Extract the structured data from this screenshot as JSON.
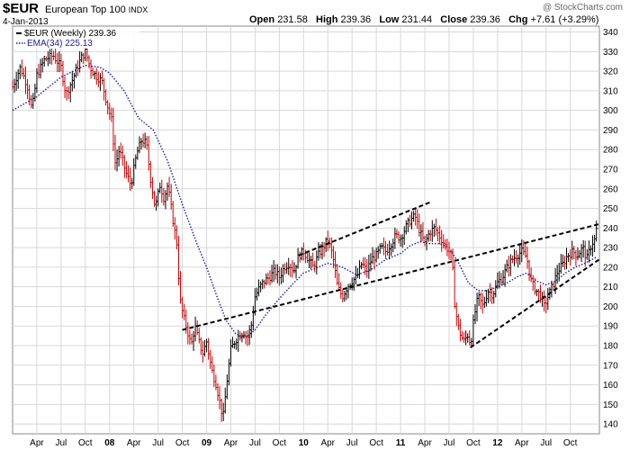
{
  "header": {
    "symbol": "$EUR",
    "name": "European Top 100",
    "exchange": "INDX",
    "date": "4-Jan-2013",
    "open_label": "Open",
    "open": "231.58",
    "high_label": "High",
    "high": "239.36",
    "low_label": "Low",
    "low": "231.44",
    "close_label": "Close",
    "close": "239.36",
    "chg_label": "Chg",
    "chg": "+7.61 (+3.29%)",
    "credit": "@ StockCharts.com"
  },
  "legend": {
    "price": "$EUR (Weekly) 239.36",
    "ema": "EMA(34) 225.13"
  },
  "colors": {
    "up": "#000000",
    "down": "#cc0000",
    "ema": "#1a1aa8",
    "grid": "#d8d8d8",
    "trend": "#000000"
  },
  "chart_data": {
    "type": "line",
    "ylim": [
      135,
      343
    ],
    "xlim": [
      2007.0,
      2013.05
    ],
    "y_ticks": [
      140,
      150,
      160,
      170,
      180,
      190,
      200,
      210,
      220,
      230,
      240,
      250,
      260,
      270,
      280,
      290,
      300,
      310,
      320,
      330,
      340
    ],
    "x_ticks": [
      {
        "label": "Apr",
        "x": 2007.25
      },
      {
        "label": "Jul",
        "x": 2007.5
      },
      {
        "label": "Oct",
        "x": 2007.75
      },
      {
        "label": "08",
        "x": 2008.0
      },
      {
        "label": "Apr",
        "x": 2008.25
      },
      {
        "label": "Jul",
        "x": 2008.5
      },
      {
        "label": "Oct",
        "x": 2008.75
      },
      {
        "label": "09",
        "x": 2009.0
      },
      {
        "label": "Apr",
        "x": 2009.25
      },
      {
        "label": "Jul",
        "x": 2009.5
      },
      {
        "label": "Oct",
        "x": 2009.75
      },
      {
        "label": "10",
        "x": 2010.0
      },
      {
        "label": "Apr",
        "x": 2010.25
      },
      {
        "label": "Jul",
        "x": 2010.5
      },
      {
        "label": "Oct",
        "x": 2010.75
      },
      {
        "label": "11",
        "x": 2011.0
      },
      {
        "label": "Apr",
        "x": 2011.25
      },
      {
        "label": "Jul",
        "x": 2011.5
      },
      {
        "label": "Oct",
        "x": 2011.75
      },
      {
        "label": "12",
        "x": 2012.0
      },
      {
        "label": "Apr",
        "x": 2012.25
      },
      {
        "label": "Jul",
        "x": 2012.5
      },
      {
        "label": "Oct",
        "x": 2012.75
      }
    ],
    "price_path": [
      [
        2007.0,
        312
      ],
      [
        2007.08,
        322
      ],
      [
        2007.15,
        313
      ],
      [
        2007.2,
        300
      ],
      [
        2007.25,
        318
      ],
      [
        2007.33,
        326
      ],
      [
        2007.42,
        328
      ],
      [
        2007.5,
        322
      ],
      [
        2007.55,
        308
      ],
      [
        2007.62,
        316
      ],
      [
        2007.7,
        326
      ],
      [
        2007.75,
        330
      ],
      [
        2007.8,
        322
      ],
      [
        2007.85,
        318
      ],
      [
        2007.92,
        315
      ],
      [
        2007.97,
        304
      ],
      [
        2008.02,
        295
      ],
      [
        2008.06,
        272
      ],
      [
        2008.1,
        280
      ],
      [
        2008.17,
        268
      ],
      [
        2008.22,
        262
      ],
      [
        2008.28,
        278
      ],
      [
        2008.33,
        285
      ],
      [
        2008.38,
        283
      ],
      [
        2008.42,
        266
      ],
      [
        2008.47,
        250
      ],
      [
        2008.52,
        262
      ],
      [
        2008.56,
        255
      ],
      [
        2008.6,
        262
      ],
      [
        2008.65,
        245
      ],
      [
        2008.7,
        230
      ],
      [
        2008.72,
        205
      ],
      [
        2008.76,
        195
      ],
      [
        2008.8,
        188
      ],
      [
        2008.84,
        180
      ],
      [
        2008.88,
        190
      ],
      [
        2008.92,
        182
      ],
      [
        2008.96,
        176
      ],
      [
        2009.0,
        182
      ],
      [
        2009.05,
        168
      ],
      [
        2009.1,
        160
      ],
      [
        2009.14,
        150
      ],
      [
        2009.17,
        143
      ],
      [
        2009.21,
        162
      ],
      [
        2009.25,
        178
      ],
      [
        2009.29,
        182
      ],
      [
        2009.33,
        185
      ],
      [
        2009.38,
        187
      ],
      [
        2009.42,
        184
      ],
      [
        2009.46,
        190
      ],
      [
        2009.5,
        205
      ],
      [
        2009.55,
        210
      ],
      [
        2009.6,
        213
      ],
      [
        2009.65,
        215
      ],
      [
        2009.7,
        218
      ],
      [
        2009.75,
        215
      ],
      [
        2009.8,
        220
      ],
      [
        2009.85,
        222
      ],
      [
        2009.9,
        218
      ],
      [
        2009.95,
        226
      ],
      [
        2010.0,
        228
      ],
      [
        2010.05,
        224
      ],
      [
        2010.1,
        220
      ],
      [
        2010.15,
        226
      ],
      [
        2010.2,
        230
      ],
      [
        2010.25,
        234
      ],
      [
        2010.3,
        226
      ],
      [
        2010.35,
        210
      ],
      [
        2010.4,
        205
      ],
      [
        2010.45,
        210
      ],
      [
        2010.5,
        213
      ],
      [
        2010.55,
        215
      ],
      [
        2010.6,
        222
      ],
      [
        2010.65,
        218
      ],
      [
        2010.7,
        224
      ],
      [
        2010.75,
        226
      ],
      [
        2010.8,
        230
      ],
      [
        2010.85,
        228
      ],
      [
        2010.9,
        232
      ],
      [
        2010.95,
        236
      ],
      [
        2011.0,
        235
      ],
      [
        2011.05,
        240
      ],
      [
        2011.1,
        244
      ],
      [
        2011.15,
        246
      ],
      [
        2011.2,
        238
      ],
      [
        2011.25,
        232
      ],
      [
        2011.3,
        238
      ],
      [
        2011.35,
        240
      ],
      [
        2011.4,
        236
      ],
      [
        2011.45,
        232
      ],
      [
        2011.5,
        228
      ],
      [
        2011.53,
        225
      ],
      [
        2011.56,
        200
      ],
      [
        2011.6,
        188
      ],
      [
        2011.65,
        182
      ],
      [
        2011.7,
        186
      ],
      [
        2011.72,
        180
      ],
      [
        2011.76,
        195
      ],
      [
        2011.8,
        205
      ],
      [
        2011.85,
        200
      ],
      [
        2011.9,
        208
      ],
      [
        2011.95,
        206
      ],
      [
        2012.0,
        212
      ],
      [
        2012.05,
        215
      ],
      [
        2012.1,
        220
      ],
      [
        2012.15,
        224
      ],
      [
        2012.2,
        226
      ],
      [
        2012.25,
        228
      ],
      [
        2012.3,
        225
      ],
      [
        2012.35,
        212
      ],
      [
        2012.4,
        208
      ],
      [
        2012.45,
        205
      ],
      [
        2012.48,
        200
      ],
      [
        2012.52,
        205
      ],
      [
        2012.58,
        212
      ],
      [
        2012.62,
        218
      ],
      [
        2012.68,
        222
      ],
      [
        2012.72,
        226
      ],
      [
        2012.78,
        228
      ],
      [
        2012.82,
        226
      ],
      [
        2012.88,
        230
      ],
      [
        2012.92,
        224
      ],
      [
        2012.97,
        232
      ],
      [
        2013.0,
        234
      ],
      [
        2013.02,
        239.36
      ]
    ],
    "ema": [
      [
        2007.0,
        300
      ],
      [
        2007.25,
        307
      ],
      [
        2007.5,
        317
      ],
      [
        2007.75,
        323
      ],
      [
        2007.9,
        322
      ],
      [
        2008.0,
        319
      ],
      [
        2008.15,
        310
      ],
      [
        2008.3,
        296
      ],
      [
        2008.45,
        290
      ],
      [
        2008.6,
        274
      ],
      [
        2008.75,
        252
      ],
      [
        2008.9,
        232
      ],
      [
        2009.0,
        220
      ],
      [
        2009.1,
        206
      ],
      [
        2009.2,
        193
      ],
      [
        2009.3,
        186
      ],
      [
        2009.4,
        184
      ],
      [
        2009.5,
        188
      ],
      [
        2009.6,
        195
      ],
      [
        2009.75,
        204
      ],
      [
        2009.9,
        212
      ],
      [
        2010.0,
        217
      ],
      [
        2010.1,
        219
      ],
      [
        2010.25,
        222
      ],
      [
        2010.4,
        220
      ],
      [
        2010.55,
        216
      ],
      [
        2010.7,
        219
      ],
      [
        2010.85,
        224
      ],
      [
        2011.0,
        227
      ],
      [
        2011.1,
        231
      ],
      [
        2011.2,
        233
      ],
      [
        2011.3,
        232
      ],
      [
        2011.4,
        232
      ],
      [
        2011.5,
        230
      ],
      [
        2011.6,
        222
      ],
      [
        2011.7,
        212
      ],
      [
        2011.8,
        208
      ],
      [
        2011.9,
        208
      ],
      [
        2012.0,
        210
      ],
      [
        2012.1,
        212
      ],
      [
        2012.2,
        215
      ],
      [
        2012.3,
        217
      ],
      [
        2012.4,
        213
      ],
      [
        2012.5,
        211
      ],
      [
        2012.6,
        213
      ],
      [
        2012.7,
        217
      ],
      [
        2012.8,
        220
      ],
      [
        2012.9,
        222
      ],
      [
        2013.02,
        225.13
      ]
    ],
    "trendlines": [
      [
        [
          2008.75,
          188
        ],
        [
          2013.05,
          242
        ]
      ],
      [
        [
          2009.95,
          226
        ],
        [
          2011.3,
          253
        ]
      ],
      [
        [
          2011.72,
          179
        ],
        [
          2013.05,
          224
        ]
      ]
    ],
    "grid": true
  }
}
